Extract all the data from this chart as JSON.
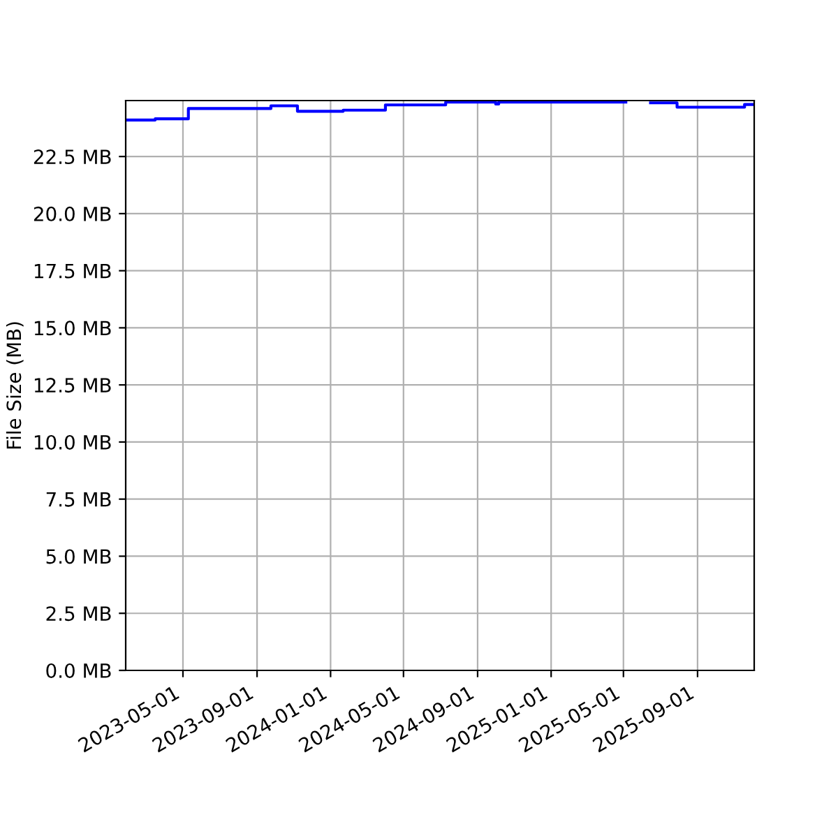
{
  "chart_data": {
    "type": "step",
    "ylabel": "File Size (MB)",
    "x": [
      "2023-01-26",
      "2023-03-16",
      "2023-05-10",
      "2023-09-24",
      "2023-11-07",
      "2024-01-22",
      "2024-04-01",
      "2024-07-10",
      "2024-10-01",
      "2024-10-06",
      "2025-05-05",
      "2025-06-15",
      "2025-07-29",
      "2025-11-18",
      "2025-12-04"
    ],
    "series": [
      {
        "color": "#0000ff",
        "values": [
          24.1,
          24.15,
          24.6,
          24.72,
          24.48,
          24.53,
          24.76,
          24.88,
          24.8,
          24.88,
          null,
          24.85,
          24.66,
          24.78,
          24.78
        ]
      }
    ],
    "xlim": [
      "2023-01-26",
      "2025-12-04"
    ],
    "xticks": [
      "2023-05-01",
      "2023-09-01",
      "2024-01-01",
      "2024-05-01",
      "2024-09-01",
      "2025-01-01",
      "2025-05-01",
      "2025-09-01"
    ],
    "ylim": [
      0,
      24.95
    ],
    "yticks": [
      {
        "value": 0,
        "label": "0.0 MB"
      },
      {
        "value": 2.5,
        "label": "2.5 MB"
      },
      {
        "value": 5,
        "label": "5.0 MB"
      },
      {
        "value": 7.5,
        "label": "7.5 MB"
      },
      {
        "value": 10,
        "label": "10.0 MB"
      },
      {
        "value": 12.5,
        "label": "12.5 MB"
      },
      {
        "value": 15,
        "label": "15.0 MB"
      },
      {
        "value": 17.5,
        "label": "17.5 MB"
      },
      {
        "value": 20,
        "label": "20.0 MB"
      },
      {
        "value": 22.5,
        "label": "22.5 MB"
      }
    ],
    "grid": true
  }
}
